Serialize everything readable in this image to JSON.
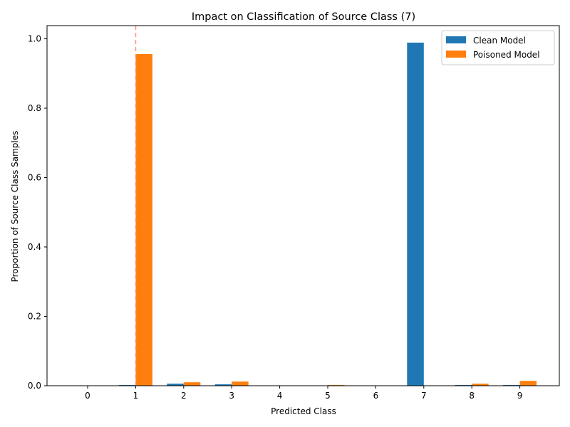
{
  "chart_data": {
    "type": "bar",
    "title": "Impact on Classification of Source Class (7)",
    "xlabel": "Predicted Class",
    "ylabel": "Proportion of Source Class Samples",
    "categories": [
      "0",
      "1",
      "2",
      "3",
      "4",
      "5",
      "6",
      "7",
      "8",
      "9"
    ],
    "series": [
      {
        "name": "Clean Model",
        "color": "#1f77b4",
        "values": [
          0.0,
          0.002,
          0.006,
          0.004,
          0.0,
          0.001,
          0.0,
          0.989,
          0.002,
          0.002
        ]
      },
      {
        "name": "Poisoned Model",
        "color": "#ff7f0e",
        "values": [
          0.0,
          0.956,
          0.01,
          0.012,
          0.0,
          0.002,
          0.0,
          0.0,
          0.006,
          0.014
        ]
      }
    ],
    "ylim": [
      0,
      1.038
    ],
    "yticks": [
      "0.0",
      "0.2",
      "0.4",
      "0.6",
      "0.8",
      "1.0"
    ],
    "ytick_values": [
      0,
      0.2,
      0.4,
      0.6,
      0.8,
      1.0
    ],
    "target_line": {
      "at_category": "1",
      "color": "#ff9a8a",
      "style": "dashed"
    },
    "legend_position": "top-right",
    "grid": false
  }
}
